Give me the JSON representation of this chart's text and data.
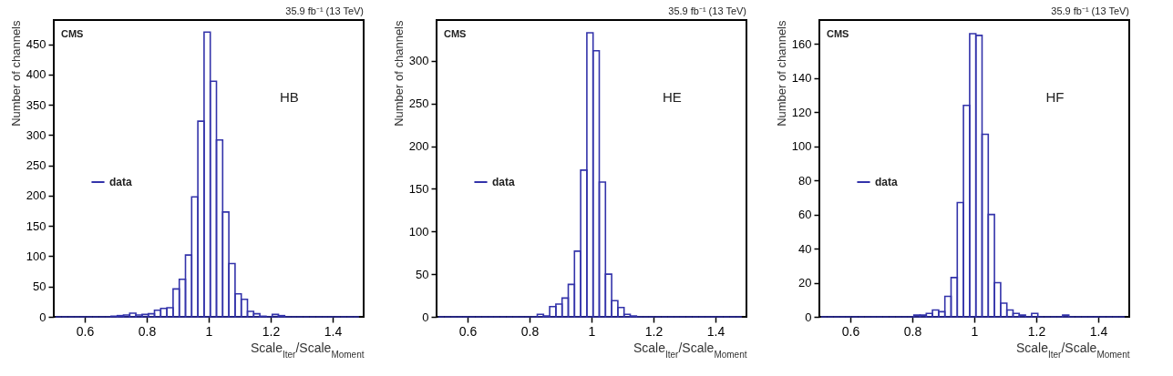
{
  "chart_data": [
    {
      "type": "histogram",
      "title": "35.9 fb⁻¹ (13 TeV)",
      "xlabel": "Scale$_{Iter}$/Scale$_{Moment}$",
      "ylabel": "Number of channels",
      "annotations": [
        "CMS",
        "HB"
      ],
      "bins": [
        0.505,
        0.525,
        0.545,
        0.565,
        0.585,
        0.605,
        0.625,
        0.645,
        0.665,
        0.685,
        0.705,
        0.725,
        0.745,
        0.765,
        0.785,
        0.805,
        0.825,
        0.845,
        0.865,
        0.885,
        0.905,
        0.925,
        0.945,
        0.965,
        0.985,
        1.005,
        1.025,
        1.045,
        1.065,
        1.085,
        1.105,
        1.125,
        1.145,
        1.165,
        1.185,
        1.205,
        1.225,
        1.245,
        1.265,
        1.285,
        1.305,
        1.325,
        1.345,
        1.365,
        1.385,
        1.405,
        1.425,
        1.445,
        1.465,
        1.485
      ],
      "series": [
        {
          "name": "data",
          "color": "#3333aa",
          "values": [
            0,
            0,
            0,
            0,
            0,
            0,
            0,
            0,
            0,
            1,
            2,
            3,
            6,
            3,
            4,
            5,
            11,
            14,
            15,
            46,
            62,
            102,
            198,
            323,
            470,
            389,
            292,
            173,
            88,
            38,
            29,
            9,
            5,
            1,
            0,
            4,
            2,
            0,
            0,
            0,
            0,
            0,
            0,
            0,
            0,
            0,
            0,
            0,
            0
          ]
        }
      ],
      "xlim": [
        0.5,
        1.5
      ],
      "xticks": [
        0.6,
        0.8,
        1,
        1.2,
        1.4
      ],
      "ylim": [
        0,
        490
      ],
      "yticks": [
        0,
        50,
        100,
        150,
        200,
        250,
        300,
        350,
        400,
        450
      ],
      "grid": false,
      "legend": "left"
    },
    {
      "type": "histogram",
      "title": "35.9 fb⁻¹ (13 TeV)",
      "xlabel": "Scale$_{Iter}$/Scale$_{Moment}$",
      "ylabel": "Number of channels",
      "annotations": [
        "CMS",
        "HE"
      ],
      "bins": [
        0.505,
        0.525,
        0.545,
        0.565,
        0.585,
        0.605,
        0.625,
        0.645,
        0.665,
        0.685,
        0.705,
        0.725,
        0.745,
        0.765,
        0.785,
        0.805,
        0.825,
        0.845,
        0.865,
        0.885,
        0.905,
        0.925,
        0.945,
        0.965,
        0.985,
        1.005,
        1.025,
        1.045,
        1.065,
        1.085,
        1.105,
        1.125,
        1.145,
        1.165,
        1.185,
        1.205,
        1.225,
        1.245,
        1.265,
        1.285,
        1.305,
        1.325,
        1.345,
        1.365,
        1.385,
        1.405,
        1.425,
        1.445,
        1.465,
        1.485
      ],
      "series": [
        {
          "name": "data",
          "color": "#3333aa",
          "values": [
            0,
            0,
            0,
            0,
            0,
            0,
            0,
            0,
            0,
            0,
            0,
            0,
            0,
            0,
            0,
            0,
            3,
            1,
            12,
            15,
            22,
            38,
            77,
            172,
            333,
            312,
            158,
            50,
            19,
            11,
            3,
            1,
            0,
            0,
            0,
            0,
            0,
            0,
            0,
            0,
            0,
            0,
            0,
            0,
            0,
            0,
            0,
            0,
            0
          ]
        }
      ],
      "xlim": [
        0.5,
        1.5
      ],
      "xticks": [
        0.6,
        0.8,
        1,
        1.2,
        1.4
      ],
      "ylim": [
        0,
        348
      ],
      "yticks": [
        0,
        50,
        100,
        150,
        200,
        250,
        300
      ],
      "grid": false,
      "legend": "left"
    },
    {
      "type": "histogram",
      "title": "35.9 fb⁻¹ (13 TeV)",
      "xlabel": "Scale$_{Iter}$/Scale$_{Moment}$",
      "ylabel": "Number of channels",
      "annotations": [
        "CMS",
        "HF"
      ],
      "bins": [
        0.505,
        0.525,
        0.545,
        0.565,
        0.585,
        0.605,
        0.625,
        0.645,
        0.665,
        0.685,
        0.705,
        0.725,
        0.745,
        0.765,
        0.785,
        0.805,
        0.825,
        0.845,
        0.865,
        0.885,
        0.905,
        0.925,
        0.945,
        0.965,
        0.985,
        1.005,
        1.025,
        1.045,
        1.065,
        1.085,
        1.105,
        1.125,
        1.145,
        1.165,
        1.185,
        1.205,
        1.225,
        1.245,
        1.265,
        1.285,
        1.305,
        1.325,
        1.345,
        1.365,
        1.385,
        1.405,
        1.425,
        1.445,
        1.465,
        1.485
      ],
      "series": [
        {
          "name": "data",
          "color": "#3333aa",
          "values": [
            0,
            0,
            0,
            0,
            0,
            0,
            0,
            0,
            0,
            0,
            0,
            0,
            0,
            0,
            0,
            1,
            1,
            2,
            4,
            3,
            12,
            23,
            67,
            124,
            166,
            165,
            107,
            60,
            20,
            8,
            4,
            2,
            1,
            0,
            2,
            0,
            0,
            0,
            0,
            1,
            0,
            0,
            0,
            0,
            0,
            0,
            0,
            0,
            0
          ]
        }
      ],
      "xlim": [
        0.5,
        1.5
      ],
      "xticks": [
        0.6,
        0.8,
        1,
        1.2,
        1.4
      ],
      "ylim": [
        0,
        174
      ],
      "yticks": [
        0,
        20,
        40,
        60,
        80,
        100,
        120,
        140,
        160
      ],
      "grid": false,
      "legend": "left"
    }
  ]
}
